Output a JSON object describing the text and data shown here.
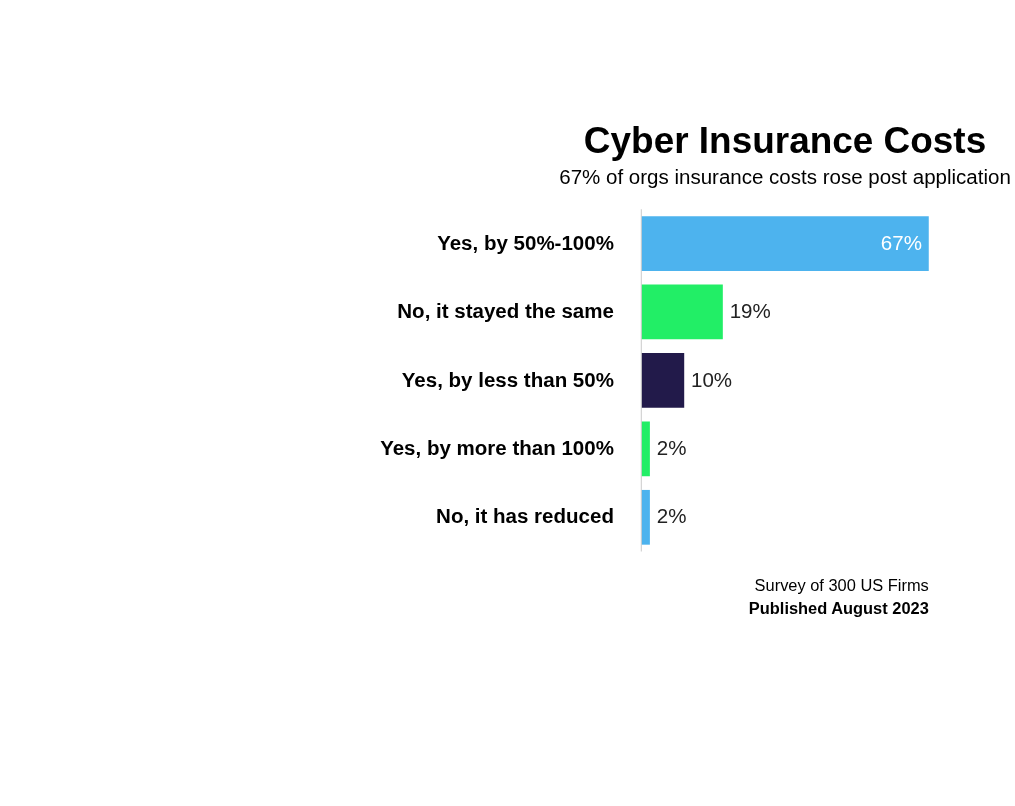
{
  "chart_data": {
    "type": "bar",
    "orientation": "horizontal",
    "title": "Cyber Insurance Costs",
    "subtitle": "67% of orgs insurance costs rose post application",
    "categories": [
      "Yes, by 50%-100%",
      "No, it stayed the same",
      "Yes, by less than 50%",
      "Yes, by more than 100%",
      "No, it has reduced"
    ],
    "values": [
      67,
      19,
      10,
      2,
      2
    ],
    "value_labels": [
      "67%",
      "19%",
      "10%",
      "2%",
      "2%"
    ],
    "colors": [
      "#4db3ee",
      "#22ee66",
      "#221a4a",
      "#22ee66",
      "#4db3ee"
    ],
    "annotations": [
      "Survey of 300 US Firms",
      "Published August 2023"
    ]
  }
}
